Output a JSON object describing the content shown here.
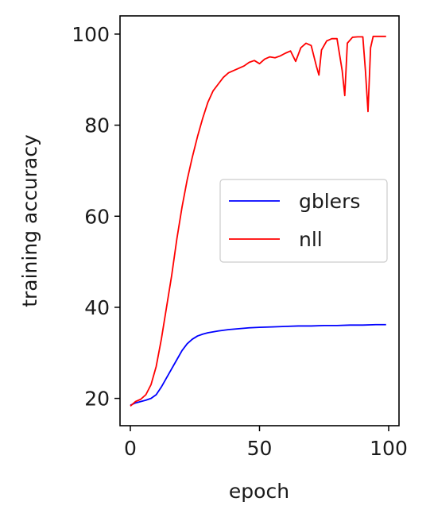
{
  "chart_data": {
    "type": "line",
    "xlabel": "epoch",
    "ylabel": "training accuracy",
    "xlim": [
      -4,
      104
    ],
    "ylim": [
      14,
      104
    ],
    "xticks": [
      0,
      50,
      100
    ],
    "yticks": [
      20,
      40,
      60,
      80,
      100
    ],
    "grid": false,
    "legend_position": "center-right",
    "series": [
      {
        "name": "gblers",
        "color": "#0000ff",
        "x": [
          0,
          2,
          4,
          6,
          8,
          10,
          12,
          14,
          16,
          18,
          20,
          22,
          24,
          26,
          28,
          30,
          34,
          38,
          42,
          46,
          50,
          55,
          60,
          65,
          70,
          75,
          80,
          85,
          90,
          95,
          99
        ],
        "y": [
          18.5,
          19.0,
          19.3,
          19.6,
          20.0,
          20.8,
          22.5,
          24.5,
          26.5,
          28.5,
          30.5,
          32.0,
          33.0,
          33.7,
          34.1,
          34.4,
          34.8,
          35.1,
          35.3,
          35.5,
          35.6,
          35.7,
          35.8,
          35.9,
          35.9,
          36.0,
          36.0,
          36.1,
          36.1,
          36.2,
          36.2
        ]
      },
      {
        "name": "nll",
        "color": "#ff0000",
        "x": [
          0,
          2,
          4,
          6,
          8,
          10,
          12,
          14,
          16,
          18,
          20,
          22,
          24,
          26,
          28,
          30,
          32,
          34,
          36,
          38,
          40,
          42,
          44,
          46,
          48,
          50,
          52,
          54,
          56,
          58,
          60,
          62,
          64,
          66,
          68,
          70,
          72,
          73,
          74,
          76,
          78,
          80,
          82,
          83,
          84,
          86,
          88,
          90,
          91,
          92,
          93,
          94,
          96,
          98,
          99
        ],
        "y": [
          18.3,
          19.3,
          19.8,
          20.8,
          23.0,
          27.0,
          33.0,
          40.0,
          47.0,
          55.0,
          62.0,
          68.0,
          73.0,
          77.5,
          81.5,
          85.0,
          87.5,
          89.0,
          90.5,
          91.5,
          92.0,
          92.5,
          93.0,
          93.8,
          94.2,
          93.5,
          94.5,
          95.0,
          94.8,
          95.2,
          95.8,
          96.3,
          94.0,
          97.0,
          98.0,
          97.5,
          93.0,
          91.0,
          96.5,
          98.5,
          99.0,
          99.0,
          92.0,
          86.5,
          98.0,
          99.3,
          99.4,
          99.4,
          92.0,
          83.0,
          97.0,
          99.5,
          99.5,
          99.5,
          99.5
        ]
      }
    ]
  }
}
